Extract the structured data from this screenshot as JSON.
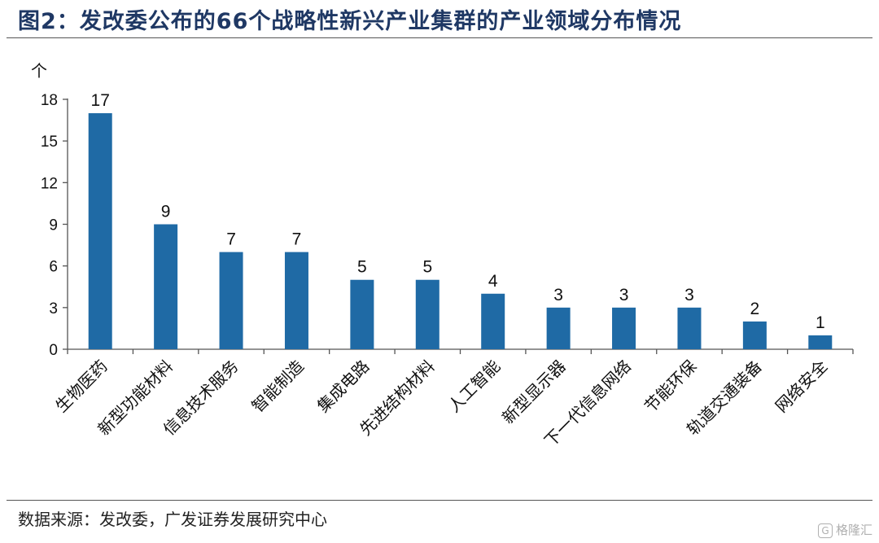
{
  "chart_data": {
    "type": "bar",
    "title": "图2：发改委公布的66个战略性新兴产业集群的产业领域分布情况",
    "ylabel": "个",
    "categories": [
      "生物医药",
      "新型功能材料",
      "信息技术服务",
      "智能制造",
      "集成电路",
      "先进结构材料",
      "人工智能",
      "新型显示器",
      "下一代信息网络",
      "节能环保",
      "轨道交通装备",
      "网络安全"
    ],
    "values": [
      17,
      9,
      7,
      7,
      5,
      5,
      4,
      3,
      3,
      3,
      2,
      1
    ],
    "ylim": [
      0,
      18
    ],
    "yticks": [
      0,
      3,
      6,
      9,
      12,
      15,
      18
    ],
    "bar_color": "#1f6aa5",
    "grid": false,
    "legend": "none",
    "data_labels": true
  },
  "source": "数据来源：发改委，广发证券发展研究中心",
  "watermark": "格隆汇",
  "watermark_icon": "G"
}
